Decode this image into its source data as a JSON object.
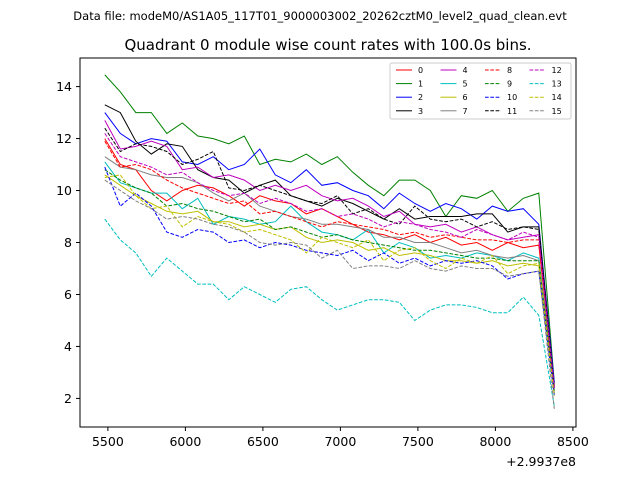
{
  "suptitle": "Data file: modeM0/AS1A05_117T01_9000003002_20262cztM0_level2_quad_clean.evt",
  "chart_data": {
    "type": "line",
    "title": "Quadrant 0 module wise count rates with 100.0s bins.",
    "xlabel": "",
    "ylabel": "",
    "x_offset_label": "+2.9937e8",
    "xlim": [
      5320,
      8520
    ],
    "ylim": [
      0.9,
      15.1
    ],
    "xticks": [
      5500,
      6000,
      6500,
      7000,
      7500,
      8000,
      8500
    ],
    "yticks": [
      2,
      4,
      6,
      8,
      10,
      12,
      14
    ],
    "grid": false,
    "legend_position": "top-right",
    "legend_columns": 4,
    "x": [
      5480,
      5580,
      5680,
      5780,
      5880,
      5980,
      6080,
      6180,
      6280,
      6380,
      6480,
      6580,
      6680,
      6780,
      6880,
      6980,
      7080,
      7180,
      7280,
      7380,
      7480,
      7580,
      7680,
      7780,
      7880,
      7980,
      8080,
      8180,
      8280,
      8380
    ],
    "series": [
      {
        "name": "0",
        "color": "#ff0000",
        "dash": "solid",
        "values": [
          12.0,
          11.0,
          10.8,
          10.0,
          9.6,
          10.0,
          10.2,
          10.1,
          9.8,
          9.4,
          9.8,
          9.6,
          9.5,
          9.1,
          9.3,
          9.0,
          8.7,
          8.4,
          8.3,
          8.1,
          8.3,
          8.0,
          8.2,
          7.9,
          8.0,
          7.7,
          8.0,
          7.8,
          7.9,
          2.5
        ]
      },
      {
        "name": "1",
        "color": "#008000",
        "dash": "solid",
        "values": [
          14.45,
          13.8,
          13.0,
          13.0,
          12.2,
          12.6,
          12.1,
          12.0,
          11.8,
          12.1,
          11.0,
          11.2,
          11.1,
          11.4,
          11.0,
          11.3,
          10.7,
          10.2,
          9.8,
          10.4,
          10.4,
          10.0,
          9.0,
          9.8,
          9.7,
          10.0,
          9.2,
          9.7,
          9.9,
          2.6
        ]
      },
      {
        "name": "2",
        "color": "#0000ff",
        "dash": "solid",
        "values": [
          13.0,
          12.2,
          11.8,
          12.0,
          11.9,
          11.1,
          11.0,
          11.3,
          10.8,
          11.0,
          11.6,
          10.6,
          10.3,
          10.8,
          10.2,
          10.3,
          10.0,
          9.8,
          9.3,
          9.9,
          9.5,
          9.2,
          9.5,
          9.3,
          8.9,
          9.4,
          9.2,
          9.3,
          8.7,
          2.6
        ]
      },
      {
        "name": "3",
        "color": "#000000",
        "dash": "solid",
        "values": [
          13.3,
          13.0,
          11.9,
          11.4,
          11.8,
          11.7,
          10.8,
          10.5,
          10.4,
          9.9,
          10.2,
          10.4,
          9.8,
          9.6,
          9.4,
          9.7,
          9.5,
          9.2,
          8.9,
          9.3,
          8.9,
          9.0,
          9.0,
          9.0,
          9.1,
          9.1,
          8.4,
          8.6,
          8.6,
          2.4
        ]
      },
      {
        "name": "4",
        "color": "#bf00bf",
        "dash": "solid",
        "values": [
          12.7,
          11.6,
          11.7,
          11.9,
          11.7,
          10.8,
          10.9,
          10.5,
          10.6,
          10.4,
          10.0,
          10.2,
          10.0,
          10.2,
          9.8,
          9.6,
          9.7,
          9.4,
          9.0,
          9.2,
          8.7,
          8.6,
          8.7,
          8.4,
          8.6,
          8.3,
          8.1,
          8.2,
          8.3,
          2.4
        ]
      },
      {
        "name": "5",
        "color": "#00bfbf",
        "dash": "solid",
        "values": [
          11.1,
          10.3,
          10.1,
          9.9,
          9.9,
          9.3,
          9.7,
          8.7,
          9.0,
          8.9,
          8.7,
          8.8,
          9.4,
          8.8,
          8.4,
          8.3,
          8.1,
          8.5,
          7.6,
          8.0,
          7.8,
          7.4,
          7.5,
          7.4,
          7.6,
          7.5,
          7.3,
          7.6,
          7.4,
          2.3
        ]
      },
      {
        "name": "6",
        "color": "#bfbf00",
        "dash": "solid",
        "values": [
          10.6,
          10.2,
          9.8,
          9.5,
          9.2,
          9.1,
          9.2,
          8.8,
          8.8,
          8.6,
          8.7,
          8.5,
          8.6,
          8.2,
          8.0,
          8.1,
          8.0,
          7.7,
          7.8,
          7.5,
          7.6,
          7.5,
          7.3,
          7.3,
          7.2,
          7.3,
          7.1,
          7.2,
          7.1,
          2.2
        ]
      },
      {
        "name": "7",
        "color": "#808080",
        "dash": "solid",
        "values": [
          11.3,
          10.9,
          10.8,
          10.6,
          10.5,
          10.5,
          10.3,
          9.9,
          9.6,
          9.9,
          9.4,
          9.2,
          9.0,
          8.9,
          8.7,
          8.7,
          8.6,
          8.5,
          8.2,
          8.2,
          8.0,
          8.0,
          7.8,
          7.6,
          7.7,
          7.5,
          7.4,
          7.5,
          7.3,
          2.2
        ]
      },
      {
        "name": "8",
        "color": "#ff0000",
        "dash": "dashed",
        "values": [
          11.9,
          10.9,
          11.0,
          10.8,
          10.4,
          10.1,
          9.9,
          9.7,
          9.5,
          9.6,
          9.1,
          9.2,
          9.0,
          8.8,
          8.6,
          8.8,
          8.7,
          8.6,
          8.5,
          8.3,
          8.4,
          8.2,
          8.3,
          8.2,
          8.1,
          8.1,
          8.0,
          8.1,
          8.1,
          2.3
        ]
      },
      {
        "name": "9",
        "color": "#008000",
        "dash": "dashed",
        "values": [
          10.8,
          10.4,
          10.1,
          9.9,
          9.4,
          9.5,
          9.3,
          9.2,
          9.0,
          8.8,
          8.9,
          8.5,
          8.6,
          8.4,
          8.2,
          8.3,
          8.1,
          8.0,
          7.9,
          7.8,
          7.7,
          7.7,
          7.6,
          7.5,
          7.4,
          7.4,
          7.3,
          7.3,
          7.3,
          2.2
        ]
      },
      {
        "name": "10",
        "color": "#0000ff",
        "dash": "dashed",
        "values": [
          10.9,
          9.4,
          9.9,
          9.4,
          8.4,
          8.2,
          8.5,
          8.4,
          8.0,
          8.1,
          7.8,
          8.0,
          7.9,
          7.7,
          7.6,
          7.5,
          7.7,
          7.3,
          7.6,
          7.2,
          7.4,
          7.1,
          7.3,
          7.2,
          7.3,
          7.1,
          6.6,
          6.8,
          6.9,
          2.1
        ]
      },
      {
        "name": "11",
        "color": "#000000",
        "dash": "dashed",
        "values": [
          12.4,
          11.5,
          11.8,
          11.7,
          11.5,
          11.0,
          11.2,
          11.5,
          10.1,
          10.0,
          10.2,
          10.0,
          9.8,
          9.6,
          9.5,
          9.8,
          9.1,
          9.3,
          8.9,
          8.7,
          9.4,
          8.9,
          8.8,
          8.9,
          8.6,
          8.8,
          8.5,
          8.6,
          8.5,
          2.4
        ]
      },
      {
        "name": "12",
        "color": "#bf00bf",
        "dash": "dashed",
        "values": [
          12.2,
          11.3,
          11.1,
          10.9,
          10.6,
          10.7,
          10.3,
          10.0,
          9.8,
          9.9,
          9.5,
          9.7,
          9.5,
          9.2,
          9.3,
          9.0,
          9.1,
          8.9,
          8.6,
          8.8,
          8.7,
          8.5,
          8.4,
          8.2,
          8.5,
          8.3,
          8.1,
          8.4,
          8.2,
          2.4
        ]
      },
      {
        "name": "13",
        "color": "#00bfbf",
        "dash": "dashed",
        "values": [
          8.9,
          8.1,
          7.6,
          6.7,
          7.4,
          6.9,
          6.4,
          6.4,
          5.8,
          6.3,
          6.0,
          5.7,
          6.2,
          6.3,
          5.8,
          5.4,
          5.6,
          5.8,
          5.8,
          5.7,
          5.0,
          5.4,
          5.6,
          5.6,
          5.5,
          5.3,
          5.3,
          5.9,
          5.2,
          1.7
        ]
      },
      {
        "name": "14",
        "color": "#bfbf00",
        "dash": "dashed",
        "values": [
          10.5,
          10.6,
          9.8,
          9.3,
          9.4,
          8.6,
          9.0,
          8.8,
          8.7,
          8.4,
          8.5,
          8.3,
          8.1,
          7.6,
          8.2,
          8.0,
          7.8,
          8.1,
          7.3,
          7.7,
          7.8,
          7.3,
          7.0,
          7.4,
          7.2,
          7.5,
          6.8,
          7.1,
          7.2,
          2.1
        ]
      },
      {
        "name": "15",
        "color": "#808080",
        "dash": "dashed",
        "values": [
          10.4,
          10.0,
          9.6,
          9.3,
          8.9,
          9.0,
          8.9,
          8.7,
          8.6,
          8.4,
          8.0,
          7.9,
          8.0,
          7.9,
          7.4,
          7.7,
          7.0,
          7.1,
          7.1,
          7.0,
          7.3,
          7.0,
          6.9,
          7.1,
          7.0,
          7.0,
          6.7,
          6.8,
          6.9,
          1.6
        ]
      }
    ]
  }
}
